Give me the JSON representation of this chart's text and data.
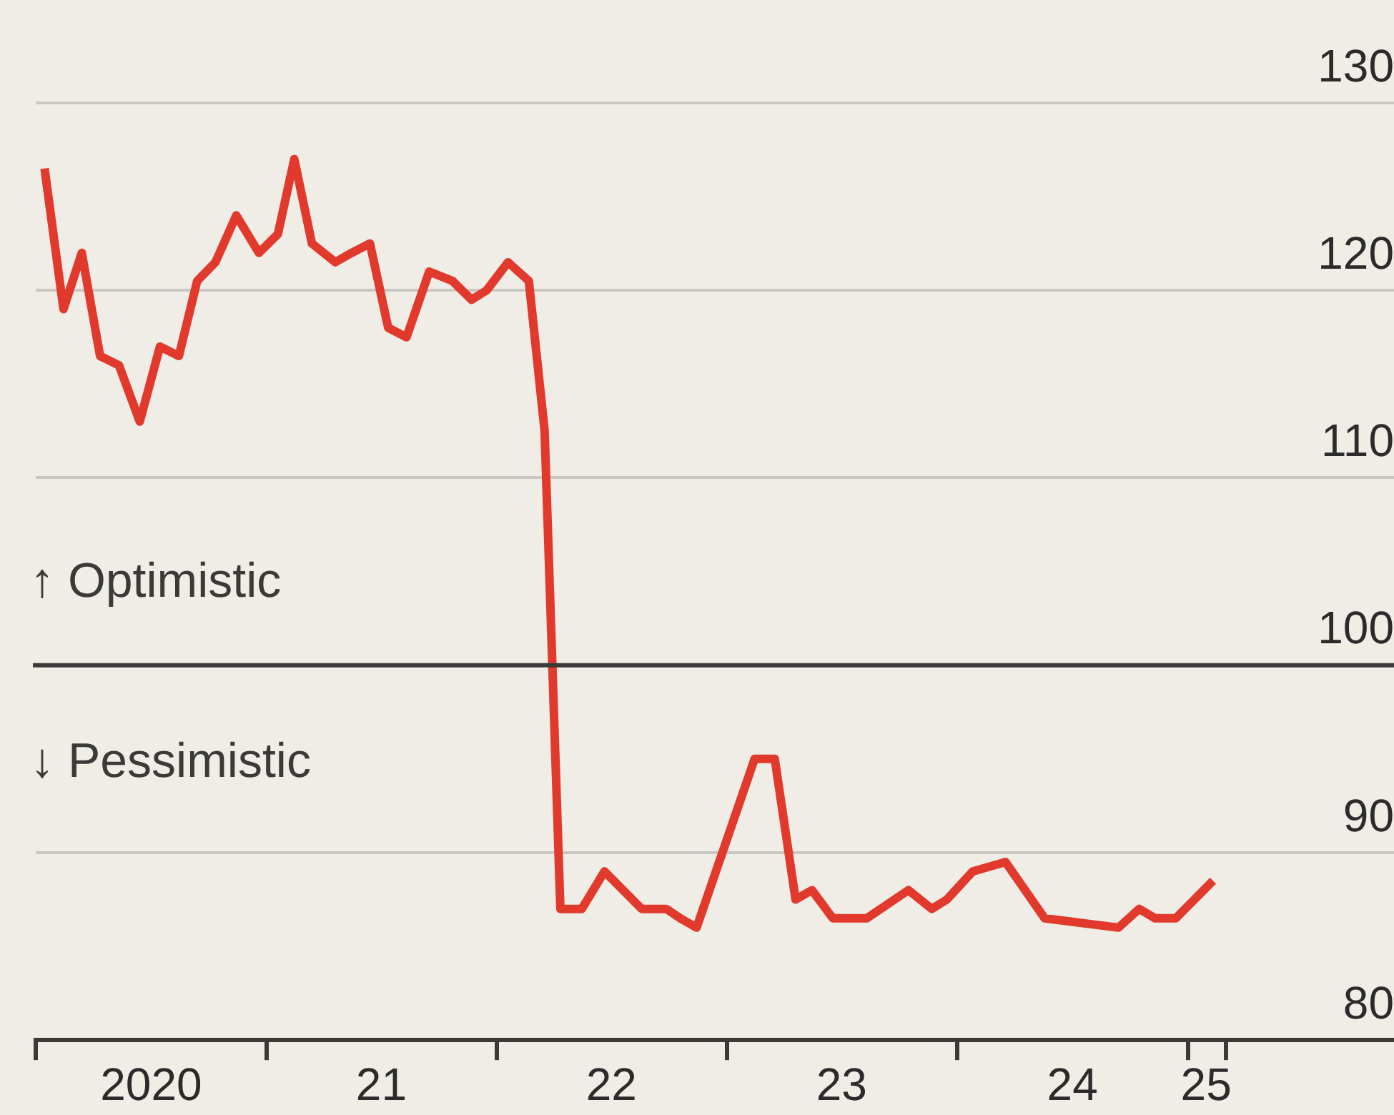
{
  "chart_data": {
    "type": "line",
    "x": [
      "2020-01-15",
      "2020-02-14",
      "2020-03-14",
      "2020-04-12",
      "2020-05-12",
      "2020-06-14",
      "2020-07-16",
      "2020-08-15",
      "2020-09-13",
      "2020-10-12",
      "2020-11-14",
      "2020-12-20",
      "2021-01-19",
      "2021-02-14",
      "2021-03-14",
      "2021-04-20",
      "2021-05-16",
      "2021-06-14",
      "2021-07-13",
      "2021-08-11",
      "2021-09-16",
      "2021-10-23",
      "2021-11-22",
      "2021-12-16",
      "2022-01-19",
      "2022-02-21",
      "2022-03-18",
      "2022-04-12",
      "2022-05-16",
      "2022-06-21",
      "2022-08-19",
      "2022-09-27",
      "2022-10-19",
      "2022-11-14",
      "2023-02-14",
      "2023-03-18",
      "2023-04-20",
      "2023-05-16",
      "2023-06-18",
      "2023-08-11",
      "2023-10-16",
      "2023-11-22",
      "2023-12-16",
      "2024-01-26",
      "2024-03-18",
      "2024-05-19",
      "2024-09-13",
      "2024-10-16",
      "2024-11-10",
      "2024-12-13",
      "2025-02-10"
    ],
    "series": [
      {
        "color": "#e13a2c",
        "values": [
          126.5,
          119,
          122,
          116.5,
          116,
          113,
          117,
          116.5,
          120.5,
          121.5,
          124,
          122,
          123,
          127,
          122.5,
          121.5,
          122,
          122.5,
          118,
          117.5,
          121,
          120.5,
          119.5,
          120,
          121.5,
          120.5,
          112.5,
          87,
          87,
          89,
          87,
          87,
          86.5,
          86,
          95,
          95,
          87.5,
          88,
          86.5,
          86.5,
          88,
          87,
          87.5,
          89,
          89.5,
          86.5,
          86,
          87,
          86.5,
          86.5,
          88.5
        ]
      }
    ],
    "xlim": [
      "2020-01-01",
      "2025-11-24"
    ],
    "xticks": [
      {
        "value": "2020-01-01",
        "label": null
      },
      {
        "value": "2020-07-02",
        "label": "2020"
      },
      {
        "value": "2021-01-01",
        "label": null
      },
      {
        "value": "2021-07-02",
        "label": "21"
      },
      {
        "value": "2022-01-01",
        "label": null
      },
      {
        "value": "2022-07-02",
        "label": "22"
      },
      {
        "value": "2023-01-01",
        "label": null
      },
      {
        "value": "2023-07-02",
        "label": "23"
      },
      {
        "value": "2024-01-01",
        "label": null
      },
      {
        "value": "2024-07-02",
        "label": "24"
      },
      {
        "value": "2025-01-01",
        "label": null
      },
      {
        "value": "2025-01-30",
        "label": "25"
      },
      {
        "value": "2025-03-03",
        "label": null
      }
    ],
    "ylim": [
      80,
      130
    ],
    "yticks": [
      80,
      90,
      100,
      110,
      120,
      130
    ],
    "grid": "y",
    "legend": false,
    "marker": "none",
    "line_style": "solid",
    "ref_lines": [
      {
        "axis": "y",
        "value": 100,
        "color": "#3a3a38"
      }
    ],
    "annotations": [
      "↑ Optimistic",
      "↓ Pessimistic"
    ]
  }
}
